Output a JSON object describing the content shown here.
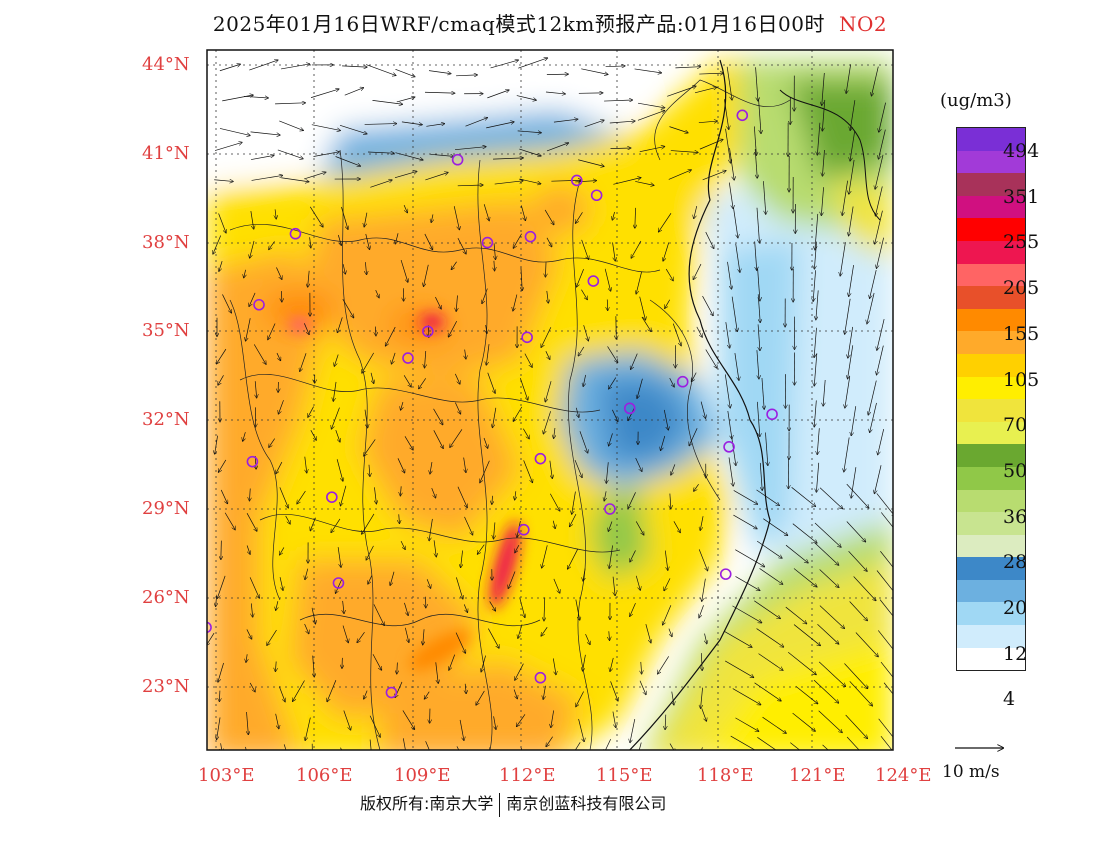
{
  "title": {
    "text": "2025年01月16日WRF/cmaq模式12km预报产品:01月16日00时",
    "pollutant": "NO2"
  },
  "axes": {
    "lat_labels": [
      "44°N",
      "41°N",
      "38°N",
      "35°N",
      "32°N",
      "29°N",
      "26°N",
      "23°N"
    ],
    "lon_labels": [
      "103°E",
      "106°E",
      "109°E",
      "112°E",
      "115°E",
      "118°E",
      "121°E",
      "124°E"
    ]
  },
  "legend": {
    "unit": "(ug/m3)",
    "colors": [
      "#7a2fd6",
      "#a23ad8",
      "#a8325a",
      "#d01080",
      "#ff0000",
      "#ee1650",
      "#ff6464",
      "#e8502a",
      "#ff8a00",
      "#ffaa2a",
      "#ffd000",
      "#ffee00",
      "#f0e43c",
      "#e8f050",
      "#6aa830",
      "#90c848",
      "#b8dc70",
      "#c8e490",
      "#dcecc0",
      "#3d88c8",
      "#6cb0e0",
      "#a0d8f4",
      "#d0ecfc",
      "#ffffff"
    ],
    "labels": [
      "494",
      "351",
      "255",
      "205",
      "155",
      "105",
      "70",
      "50",
      "36",
      "28",
      "20",
      "12",
      "4"
    ]
  },
  "vector_scale": {
    "label": "10 m/s"
  },
  "footer": {
    "left": "版权所有:南京大学",
    "right": "南京创蓝科技有限公司"
  },
  "stations": [
    [
      118.9,
      42.3
    ],
    [
      110.3,
      40.8
    ],
    [
      113.9,
      40.1
    ],
    [
      114.5,
      39.6
    ],
    [
      105.4,
      38.3
    ],
    [
      111.2,
      38.0
    ],
    [
      112.5,
      38.2
    ],
    [
      114.4,
      36.7
    ],
    [
      104.3,
      35.9
    ],
    [
      109.4,
      35.0
    ],
    [
      108.8,
      34.1
    ],
    [
      112.4,
      34.8
    ],
    [
      117.1,
      33.3
    ],
    [
      115.5,
      32.4
    ],
    [
      119.8,
      32.2
    ],
    [
      118.5,
      31.1
    ],
    [
      104.1,
      30.6
    ],
    [
      112.8,
      30.7
    ],
    [
      106.5,
      29.4
    ],
    [
      114.9,
      29.0
    ],
    [
      112.3,
      28.3
    ],
    [
      106.7,
      26.5
    ],
    [
      118.4,
      26.8
    ],
    [
      102.7,
      25.0
    ],
    [
      108.3,
      22.8
    ],
    [
      112.8,
      23.3
    ]
  ]
}
